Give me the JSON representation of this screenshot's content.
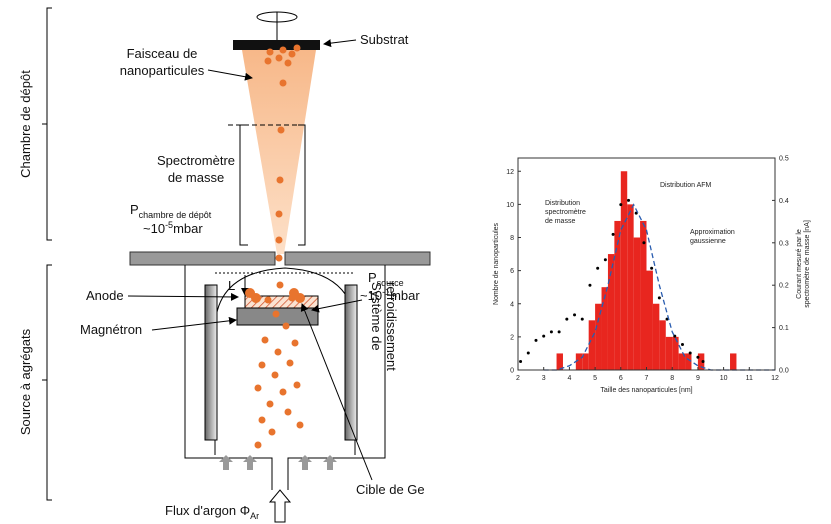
{
  "diagram": {
    "side_labels": [
      "Chambre de dépôt",
      "Source à agrégats"
    ],
    "substrate": "Substrat",
    "beam_label": [
      "Faisceau de",
      "nanoparticules"
    ],
    "spectrometer": [
      "Spectromètre",
      "de masse"
    ],
    "p_chamber": {
      "symbol": "P",
      "subscript": "chambre de dépôt",
      "value": "~10",
      "exponent": "-5",
      "unit": "mbar"
    },
    "p_source": {
      "symbol": "P",
      "subscript": "source",
      "value": "~10",
      "exponent": "-1",
      "unit": "mbar"
    },
    "cooling": [
      "Système de",
      "refroidissement"
    ],
    "length": "L",
    "anode": "Anode",
    "magnetron": "Magnétron",
    "target": "Cible de Ge",
    "argon": {
      "text": "Flux d'argon Φ",
      "subscript": "Ar"
    }
  },
  "chart_data": {
    "type": "histogram",
    "x_label": "Taille des nanoparticules [nm]",
    "y_label": "Nombre de nanoparticules",
    "y2_label": [
      "Courant mesuré par le",
      "spectromètre de masse [nA]"
    ],
    "xlim": [
      2,
      12
    ],
    "xticks": [
      2,
      3,
      4,
      5,
      6,
      7,
      8,
      9,
      10,
      11,
      12
    ],
    "ylim": [
      0,
      12.8
    ],
    "yticks": [
      0,
      2,
      4,
      6,
      8,
      10,
      12
    ],
    "y2lim": [
      0,
      0.5
    ],
    "y2ticks": [
      {
        "value": 0,
        "label": "0.0"
      },
      0.1,
      0.2,
      0.3,
      0.4,
      0.5
    ],
    "series": [
      {
        "name": [
          "Distribution AFM"
        ],
        "type": "histogram",
        "color": "#e8261f",
        "bins": [
          3,
          3.25,
          3.5,
          3.75,
          4,
          4.25,
          4.5,
          4.75,
          5,
          5.25,
          5.5,
          5.75,
          6,
          6.25,
          6.5,
          6.75,
          7,
          7.25,
          7.5,
          7.75,
          8,
          8.25,
          8.5,
          8.75,
          9,
          9.25,
          9.5,
          9.75,
          10,
          10.25,
          10.5
        ],
        "values": [
          0,
          0,
          1,
          0,
          0,
          1,
          1,
          3,
          4,
          5,
          7,
          9,
          12,
          10,
          8,
          9,
          6,
          4,
          3,
          2,
          2,
          1,
          1,
          0,
          1,
          0,
          0,
          0,
          0,
          1
        ]
      },
      {
        "name": [
          "Distribution",
          "spectromètre",
          "de masse"
        ],
        "type": "scatter",
        "color": "#000000",
        "axis": "y2",
        "x": [
          2.1,
          2.4,
          2.7,
          3.0,
          3.3,
          3.6,
          3.9,
          4.2,
          4.5,
          4.8,
          5.1,
          5.4,
          5.7,
          6.0,
          6.3,
          6.6,
          6.9,
          7.2,
          7.5,
          7.8,
          8.1,
          8.4,
          8.7,
          9.0,
          9.2
        ],
        "values": [
          0.02,
          0.04,
          0.07,
          0.08,
          0.09,
          0.09,
          0.12,
          0.13,
          0.12,
          0.2,
          0.24,
          0.26,
          0.32,
          0.39,
          0.4,
          0.37,
          0.3,
          0.24,
          0.17,
          0.12,
          0.08,
          0.06,
          0.04,
          0.03,
          0.02
        ]
      },
      {
        "name": [
          "Approximation",
          "gaussienne"
        ],
        "type": "line",
        "color": "#2a5db0",
        "axis": "y2",
        "dashed": true,
        "x": [
          3,
          3.5,
          4,
          4.5,
          5,
          5.5,
          6,
          6.5,
          7,
          7.5,
          8,
          8.5,
          9,
          9.5,
          10,
          11,
          12
        ],
        "values": [
          0,
          0,
          0.01,
          0.03,
          0.09,
          0.2,
          0.33,
          0.39,
          0.33,
          0.2,
          0.09,
          0.03,
          0.01,
          0,
          0,
          0,
          0
        ]
      }
    ]
  }
}
